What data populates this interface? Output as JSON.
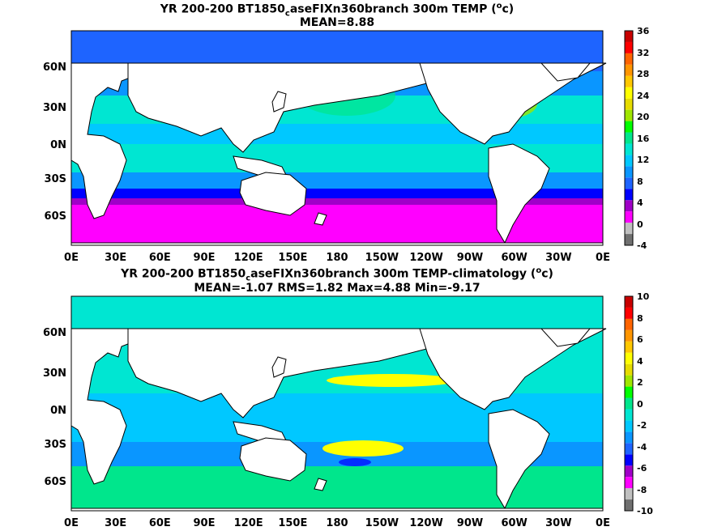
{
  "panels": [
    {
      "title_main": "YR 200-200 BT1850",
      "title_sub": "c",
      "title_rest": "aseFIXn360branch 300m TEMP (",
      "unit_sup": "o",
      "unit_rest": "c)",
      "stats": "MEAN=8.88",
      "lat_labels": [
        "60N",
        "30N",
        "0N",
        "30S",
        "60S"
      ],
      "lon_labels": [
        "0E",
        "30E",
        "60E",
        "90E",
        "120E",
        "150E",
        "180",
        "150W",
        "120W",
        "90W",
        "60W",
        "30W",
        "0E"
      ],
      "colorbar_labels": [
        "36",
        "32",
        "28",
        "24",
        "20",
        "16",
        "12",
        "8",
        "4",
        "0",
        "-4"
      ],
      "colorbar_colors": [
        "#707070",
        "#c0c0c0",
        "#ff00ff",
        "#a000c8",
        "#0000ff",
        "#1e64ff",
        "#0a96ff",
        "#00c8ff",
        "#00e6d2",
        "#00e68c",
        "#00ff00",
        "#a0e600",
        "#e6dc00",
        "#ffff00",
        "#ffc800",
        "#ff9600",
        "#ff6400",
        "#ff0000",
        "#c80000"
      ]
    },
    {
      "title_main": "YR 200-200 BT1850",
      "title_sub": "c",
      "title_rest": "aseFIXn360branch 300m TEMP-climatology (",
      "unit_sup": "o",
      "unit_rest": "c)",
      "stats": "MEAN=-1.07   RMS=1.82   Max=4.88   Min=-9.17",
      "lat_labels": [
        "60N",
        "30N",
        "0N",
        "30S",
        "60S"
      ],
      "lon_labels": [
        "0E",
        "30E",
        "60E",
        "90E",
        "120E",
        "150E",
        "180",
        "150W",
        "120W",
        "90W",
        "60W",
        "30W",
        "0E"
      ],
      "colorbar_labels": [
        "10",
        "8",
        "6",
        "4",
        "2",
        "0",
        "-2",
        "-4",
        "-6",
        "-8",
        "-10"
      ],
      "colorbar_colors": [
        "#707070",
        "#c0c0c0",
        "#ff00ff",
        "#a000c8",
        "#0000ff",
        "#1e64ff",
        "#0a96ff",
        "#00c8ff",
        "#00e6d2",
        "#00e68c",
        "#00ff00",
        "#a0e600",
        "#e6dc00",
        "#ffff00",
        "#ffc800",
        "#ff9600",
        "#ff6400",
        "#ff0000",
        "#c80000"
      ]
    }
  ]
}
